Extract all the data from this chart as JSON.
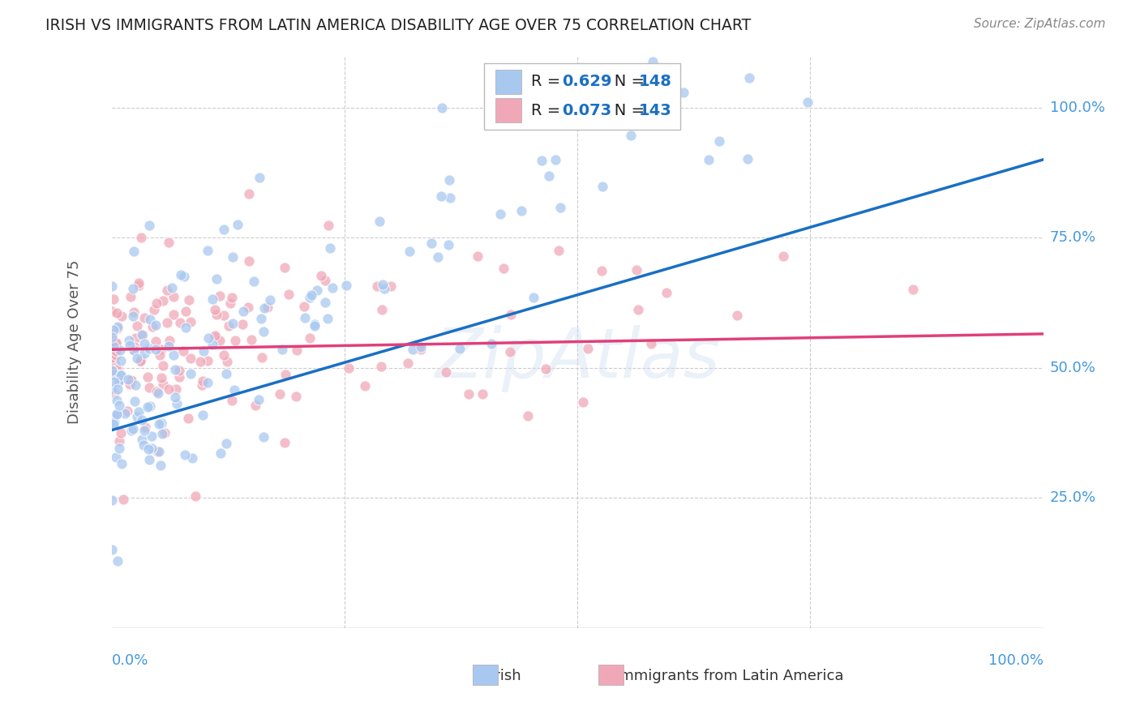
{
  "title": "IRISH VS IMMIGRANTS FROM LATIN AMERICA DISABILITY AGE OVER 75 CORRELATION CHART",
  "source": "Source: ZipAtlas.com",
  "ylabel": "Disability Age Over 75",
  "ytick_labels": [
    "25.0%",
    "50.0%",
    "75.0%",
    "100.0%"
  ],
  "ytick_positions": [
    0.25,
    0.5,
    0.75,
    1.0
  ],
  "xtick_positions": [
    0.25,
    0.5,
    0.75
  ],
  "xlim": [
    0.0,
    1.0
  ],
  "ylim": [
    0.0,
    1.1
  ],
  "irish_color": "#a8c8f0",
  "latin_color": "#f0a8b8",
  "irish_line_color": "#1a6fc4",
  "latin_line_color": "#e0407a",
  "irish_R": 0.629,
  "irish_N": 148,
  "latin_R": 0.073,
  "latin_N": 143,
  "legend_label_irish": "Irish",
  "legend_label_latin": "Immigrants from Latin America",
  "watermark": "ZipAtlas",
  "background_color": "#ffffff",
  "grid_color": "#cccccc",
  "irish_seed": 42,
  "latin_seed": 7,
  "title_color": "#222222",
  "axis_label_color": "#4499dd",
  "r_label_color": "#1a6fc4",
  "ylabel_color": "#555555",
  "irish_line_start_y": 0.38,
  "irish_line_end_y": 0.9,
  "latin_line_start_y": 0.535,
  "latin_line_end_y": 0.565
}
